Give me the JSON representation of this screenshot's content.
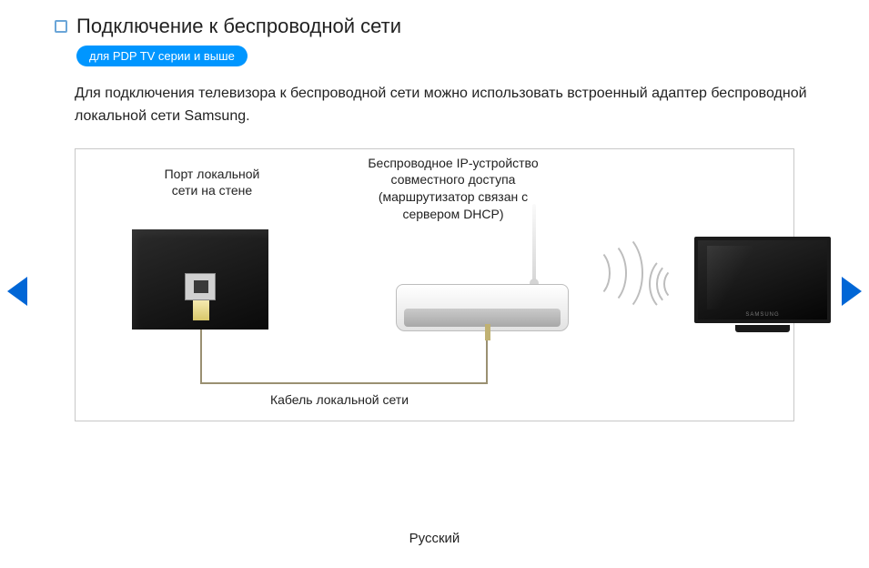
{
  "colors": {
    "badge_bg": "#0096ff",
    "badge_text": "#ffffff",
    "arrow": "#0066d6",
    "border": "#c8c8c8",
    "text": "#222222",
    "bullet_border": "#6ba6d8"
  },
  "header": {
    "title": "Подключение к беспроводной сети",
    "badge": "для PDP TV серии и выше"
  },
  "paragraph": "Для подключения телевизора к беспроводной сети можно использовать встроенный адаптер беспроводной локальной сети Samsung.",
  "diagram": {
    "wall_port_label": "Порт локальной\nсети на стене",
    "router_label": "Беспроводное IP-устройство\nсовместного доступа\n(маршрутизатор связан с\nсервером DHCP)",
    "cable_label": "Кабель локальной сети",
    "tv_brand": "SAMSUNG"
  },
  "footer": {
    "language": "Русский"
  }
}
